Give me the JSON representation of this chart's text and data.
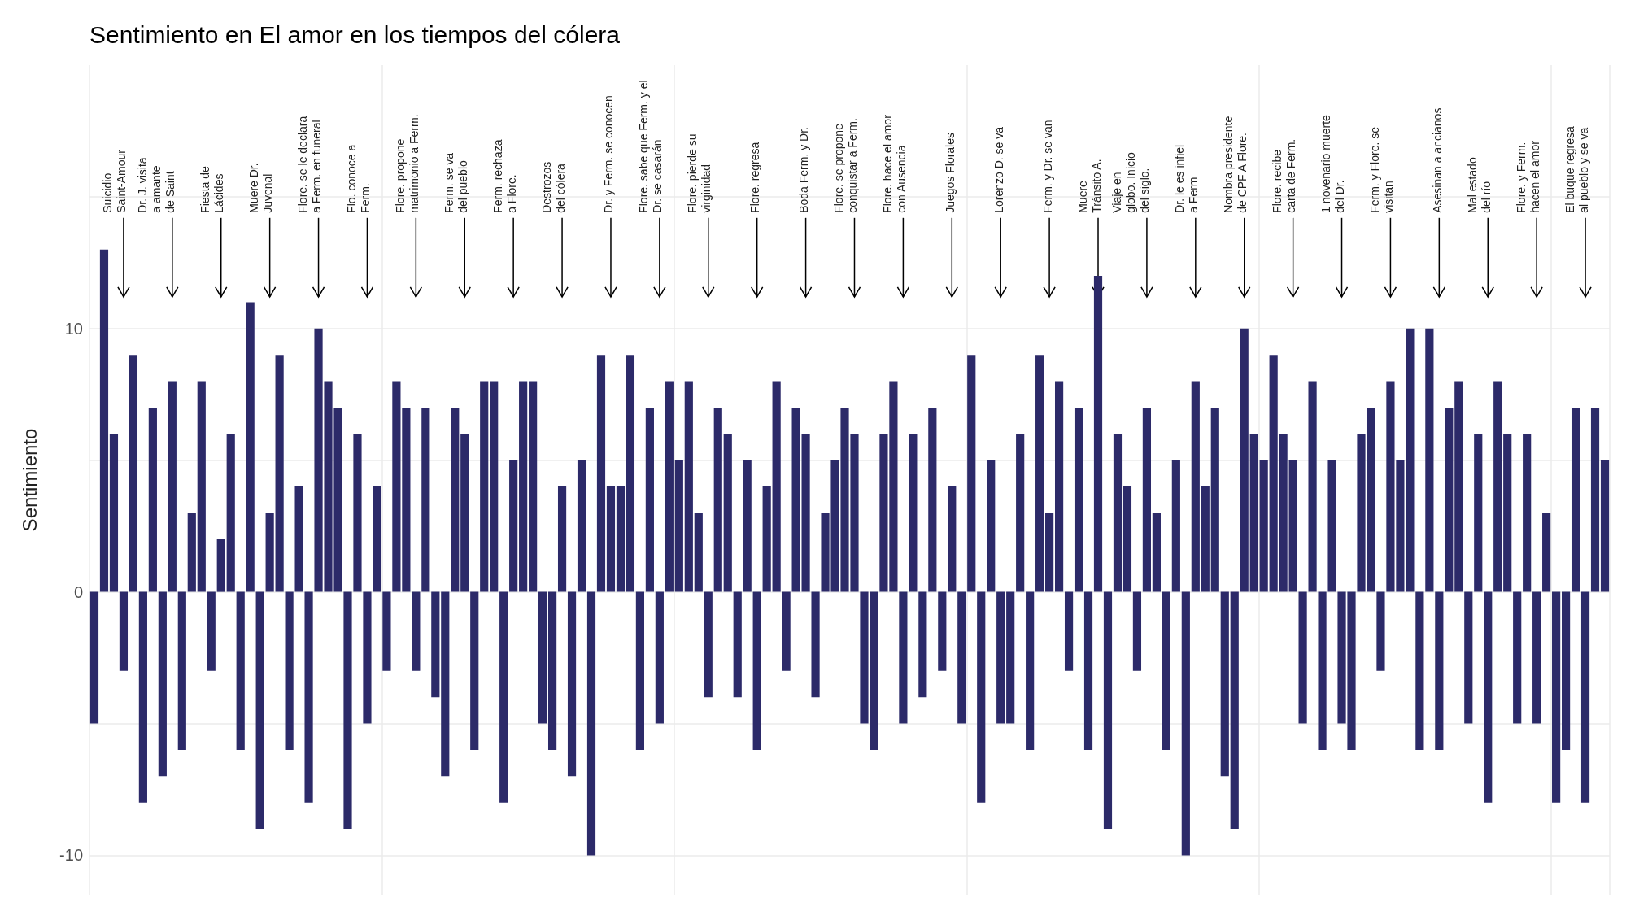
{
  "chart_data": {
    "type": "bar",
    "title": "Sentimiento en El amor en los tiempos del cólera",
    "ylabel": "Sentimiento",
    "categories": [
      null,
      null,
      null,
      null,
      null,
      null,
      null,
      null,
      null,
      null,
      null,
      null,
      null,
      null,
      null,
      null,
      null,
      null,
      null,
      null,
      null,
      null,
      null,
      null,
      null,
      null,
      null,
      null,
      null,
      null,
      null,
      null,
      null,
      null,
      null,
      null,
      null,
      null,
      null,
      null,
      null,
      null,
      null,
      null,
      null,
      null,
      null,
      null,
      null,
      null,
      null,
      null,
      null,
      null,
      null,
      null,
      null,
      null,
      null,
      null,
      null,
      null,
      null,
      null,
      null,
      null,
      null,
      null,
      null,
      null,
      null,
      null,
      null,
      null,
      null,
      null,
      null,
      null,
      null,
      null,
      null,
      null,
      null,
      null,
      null,
      null,
      null,
      null,
      null,
      null,
      null,
      null,
      null,
      null,
      null,
      null,
      null,
      null,
      null,
      null,
      null,
      null,
      null,
      null,
      null,
      null,
      null,
      null,
      null,
      null,
      null,
      null,
      null,
      null,
      null,
      null,
      null,
      null,
      null,
      null,
      null,
      null,
      null,
      null,
      null,
      null,
      null,
      null,
      null,
      null,
      null,
      null,
      null,
      null,
      null,
      null,
      null,
      null,
      null,
      null,
      null,
      null,
      null,
      null,
      null,
      null,
      null,
      null,
      null,
      null,
      null,
      null,
      null,
      null,
      null,
      null
    ],
    "values": [
      -5,
      13,
      6,
      -3,
      9,
      -8,
      7,
      -7,
      8,
      -6,
      3,
      8,
      -3,
      2,
      6,
      -6,
      11,
      -9,
      3,
      9,
      -6,
      4,
      -8,
      10,
      8,
      7,
      -9,
      6,
      -5,
      4,
      -3,
      8,
      7,
      -3,
      7,
      -4,
      -7,
      7,
      6,
      -6,
      8,
      8,
      -8,
      5,
      8,
      8,
      -5,
      -6,
      4,
      -7,
      5,
      -10,
      9,
      4,
      4,
      9,
      -6,
      7,
      -5,
      8,
      5,
      8,
      3,
      -4,
      7,
      6,
      -4,
      5,
      -6,
      4,
      8,
      -3,
      7,
      6,
      -4,
      3,
      5,
      7,
      6,
      -5,
      -6,
      6,
      8,
      -5,
      6,
      -4,
      7,
      -3,
      4,
      -5,
      9,
      -8,
      5,
      -5,
      -5,
      6,
      -6,
      9,
      3,
      8,
      -3,
      7,
      -6,
      12,
      -9,
      6,
      4,
      -3,
      7,
      3,
      -6,
      5,
      -10,
      8,
      4,
      7,
      -7,
      -9,
      10,
      6,
      5,
      9,
      6,
      5,
      -5,
      8,
      -6,
      5,
      -5,
      -6,
      6,
      7,
      -3,
      8,
      5,
      10,
      -6,
      10,
      -6,
      7,
      8,
      -5,
      6,
      -8,
      8,
      6,
      -5,
      6,
      -5,
      3,
      -8,
      -6,
      7,
      -8,
      7,
      5
    ],
    "color": "#2c2a69",
    "ylim": [
      -11.5,
      20
    ],
    "yticks": [
      -10,
      {
        "value": -5,
        "label": null
      },
      0,
      {
        "value": 5,
        "label": null
      },
      10,
      {
        "value": 15,
        "label": null
      }
    ],
    "grid": true,
    "tick_labels": "y",
    "annotations": [
      "Suicidio\nSaint-Amour",
      "Dr. J. visita\na amante\nde Saint",
      "Fiesta de\nLácides",
      "Muere Dr.\nJuvenal",
      "Flore. se le declara\na Ferm. en funeral",
      "Flo. conoce a\nFerm.",
      "Flore. propone\nmatrimonio a Ferm.",
      "Ferm. se va\ndel pueblo",
      "Ferm. rechaza\na Flore.",
      "Destrozos\ndel cólera",
      "Dr. y Ferm. se conocen",
      "Flore. sabe que Ferm. y el\nDr. se casarán",
      "Flore. pierde su\nvirginidad",
      "Flore. regresa",
      "Boda Ferm. y Dr.",
      "Flore. se propone\nconquistar a Ferm.",
      "Flore. hace el amor\ncon Ausencia",
      "Juegos Florales",
      "Lorenzo D. se va",
      "Ferm. y Dr. se van",
      "Muere\nTránsito A.",
      "Viaje en\nglobo. Inicio\ndel siglo.",
      "Dr. le es infiel\na Ferm",
      "Nombra presidente\nde CPF A Flore.",
      "Flore. recibe\ncarta de Ferm.",
      "1 novenario muerte\ndel Dr.",
      "Ferm. y Flore. se\nvisitan",
      "Asesinan a ancianos",
      "Mal estado\ndel río",
      "Flore. y Ferm.\nhacen el amor",
      "El buque regresa\nal pueblo y se va"
    ]
  }
}
